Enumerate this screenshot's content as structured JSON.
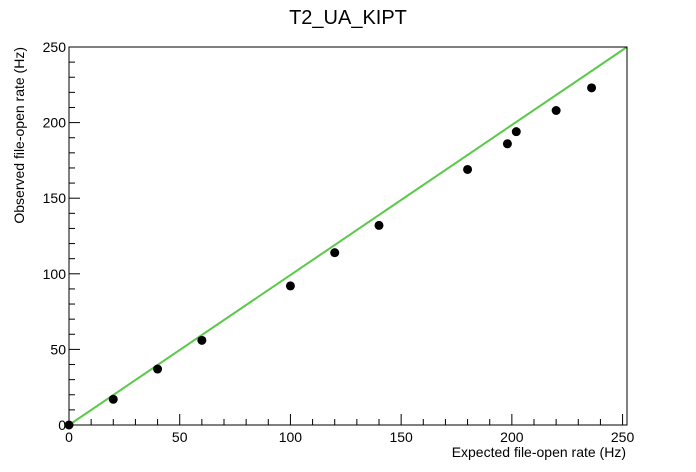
{
  "chart_data": {
    "type": "scatter",
    "title": "T2_UA_KIPT",
    "xlabel": "Expected file-open rate (Hz)",
    "ylabel": "Observed file-open rate (Hz)",
    "xlim": [
      0,
      252
    ],
    "ylim": [
      0,
      250
    ],
    "x_ticks": [
      0,
      50,
      100,
      150,
      200,
      250
    ],
    "y_ticks": [
      0,
      50,
      100,
      150,
      200,
      250
    ],
    "x_tick_labels": [
      "0",
      "50",
      "100",
      "150",
      "200",
      "250"
    ],
    "y_tick_labels": [
      "0",
      "50",
      "100",
      "150",
      "200",
      "250"
    ],
    "grid": false,
    "series": [
      {
        "type": "scatter",
        "color": "#000000",
        "points": [
          {
            "x": 0,
            "y": 0
          },
          {
            "x": 20,
            "y": 17
          },
          {
            "x": 40,
            "y": 37
          },
          {
            "x": 60,
            "y": 56
          },
          {
            "x": 100,
            "y": 92
          },
          {
            "x": 120,
            "y": 114
          },
          {
            "x": 140,
            "y": 132
          },
          {
            "x": 180,
            "y": 169
          },
          {
            "x": 198,
            "y": 186
          },
          {
            "x": 202,
            "y": 194
          },
          {
            "x": 220,
            "y": 208
          },
          {
            "x": 236,
            "y": 223
          }
        ]
      },
      {
        "type": "line",
        "color": "#5bc94a",
        "points": [
          {
            "x": 0,
            "y": 0
          },
          {
            "x": 252,
            "y": 252
          }
        ]
      }
    ]
  }
}
